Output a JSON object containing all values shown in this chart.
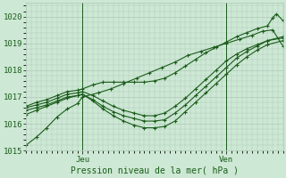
{
  "xlabel": "Pression niveau de la mer( hPa )",
  "plot_bg_color": "#cde8d4",
  "grid_color": "#b0c8b8",
  "line_color": "#1a5c1a",
  "ylim": [
    1015.0,
    1020.5
  ],
  "xlim": [
    0.0,
    1.0
  ],
  "tick_labels_y": [
    1015,
    1016,
    1017,
    1018,
    1019,
    1020
  ],
  "xtick_jeu": 0.22,
  "xtick_ven": 0.78,
  "series": [
    [
      0.0,
      1015.2,
      0.04,
      1015.5,
      0.08,
      1015.85,
      0.12,
      1016.25,
      0.16,
      1016.55,
      0.2,
      1016.75,
      0.22,
      1017.0,
      0.28,
      1017.15,
      0.33,
      1017.3,
      0.38,
      1017.5,
      0.43,
      1017.7,
      0.48,
      1017.9,
      0.53,
      1018.1,
      0.58,
      1018.3,
      0.63,
      1018.55,
      0.68,
      1018.7,
      0.73,
      1018.85,
      0.78,
      1019.0,
      0.83,
      1019.15,
      0.88,
      1019.3,
      0.92,
      1019.45,
      0.96,
      1019.5,
      1.0,
      1018.9
    ],
    [
      0.0,
      1016.35,
      0.04,
      1016.5,
      0.08,
      1016.65,
      0.12,
      1016.8,
      0.16,
      1016.95,
      0.2,
      1017.05,
      0.22,
      1017.1,
      0.26,
      1016.85,
      0.3,
      1016.55,
      0.34,
      1016.3,
      0.38,
      1016.1,
      0.42,
      1015.95,
      0.46,
      1015.85,
      0.5,
      1015.85,
      0.54,
      1015.9,
      0.58,
      1016.1,
      0.62,
      1016.45,
      0.66,
      1016.8,
      0.7,
      1017.15,
      0.74,
      1017.5,
      0.78,
      1017.85,
      0.82,
      1018.2,
      0.86,
      1018.5,
      0.9,
      1018.75,
      0.94,
      1018.95,
      1.0,
      1019.1
    ],
    [
      0.0,
      1016.5,
      0.04,
      1016.6,
      0.08,
      1016.7,
      0.12,
      1016.85,
      0.16,
      1017.0,
      0.2,
      1017.05,
      0.22,
      1017.1,
      0.26,
      1016.9,
      0.3,
      1016.65,
      0.34,
      1016.45,
      0.38,
      1016.3,
      0.42,
      1016.2,
      0.46,
      1016.1,
      0.5,
      1016.1,
      0.54,
      1016.15,
      0.58,
      1016.4,
      0.62,
      1016.7,
      0.66,
      1017.05,
      0.7,
      1017.4,
      0.74,
      1017.75,
      0.78,
      1018.1,
      0.82,
      1018.45,
      0.86,
      1018.7,
      0.9,
      1018.9,
      0.94,
      1019.1,
      1.0,
      1019.2
    ],
    [
      0.0,
      1016.6,
      0.04,
      1016.7,
      0.08,
      1016.8,
      0.12,
      1016.95,
      0.16,
      1017.1,
      0.2,
      1017.15,
      0.22,
      1017.2,
      0.26,
      1017.05,
      0.3,
      1016.85,
      0.34,
      1016.65,
      0.38,
      1016.5,
      0.42,
      1016.4,
      0.46,
      1016.3,
      0.5,
      1016.3,
      0.54,
      1016.4,
      0.58,
      1016.65,
      0.62,
      1016.95,
      0.66,
      1017.3,
      0.7,
      1017.65,
      0.74,
      1018.0,
      0.78,
      1018.35,
      0.82,
      1018.6,
      0.86,
      1018.8,
      0.9,
      1018.95,
      0.94,
      1019.1,
      1.0,
      1019.25
    ],
    [
      0.0,
      1016.65,
      0.04,
      1016.8,
      0.08,
      1016.9,
      0.12,
      1017.05,
      0.16,
      1017.2,
      0.2,
      1017.25,
      0.22,
      1017.3,
      0.26,
      1017.45,
      0.3,
      1017.55,
      0.34,
      1017.55,
      0.38,
      1017.55,
      0.42,
      1017.55,
      0.46,
      1017.55,
      0.5,
      1017.6,
      0.54,
      1017.7,
      0.58,
      1017.9,
      0.62,
      1018.15,
      0.66,
      1018.4,
      0.7,
      1018.65,
      0.74,
      1018.85,
      0.78,
      1019.05,
      0.82,
      1019.25,
      0.86,
      1019.4,
      0.9,
      1019.55,
      0.94,
      1019.65,
      0.96,
      1019.95,
      0.975,
      1020.1,
      1.0,
      1019.85
    ]
  ]
}
